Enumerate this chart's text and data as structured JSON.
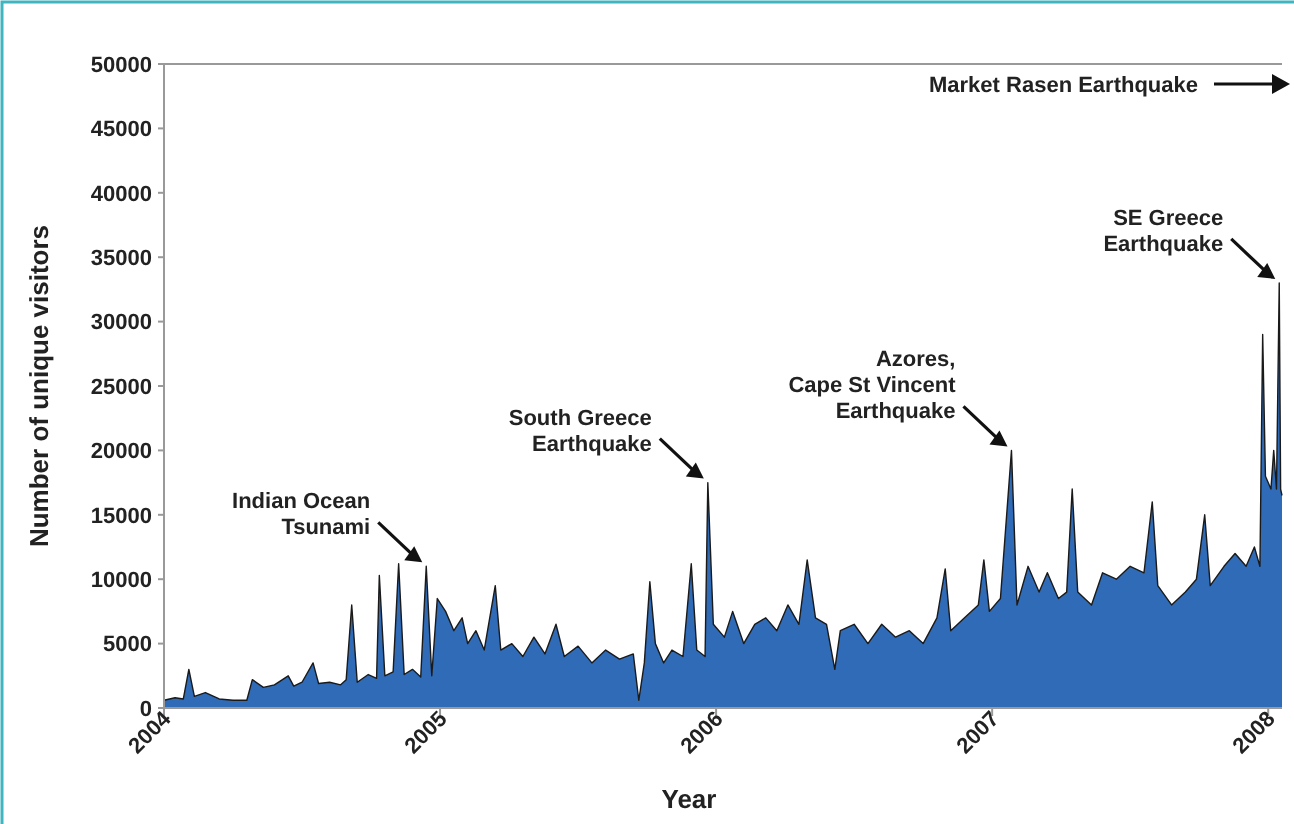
{
  "chart_data": {
    "type": "area",
    "xlabel": "Year",
    "ylabel": "Number of unique visitors",
    "xlim": [
      2004,
      2008.05
    ],
    "xticks": [
      2004,
      2005,
      2006,
      2007,
      2008
    ],
    "ylim": [
      0,
      50000
    ],
    "yticks": [
      0,
      5000,
      10000,
      15000,
      20000,
      25000,
      30000,
      35000,
      40000,
      45000,
      50000
    ],
    "annotations": [
      {
        "text": "Indian Ocean\nTsunami",
        "x": 2004.95,
        "y": 11000
      },
      {
        "text": "South Greece\nEarthquake",
        "x": 2005.97,
        "y": 17500
      },
      {
        "text": "Azores,\nCape St Vincent\nEarthquake",
        "x": 2007.07,
        "y": 20000
      },
      {
        "text": "SE Greece\nEarthquake",
        "x": 2008.04,
        "y": 33000
      },
      "Market Rasen Earthquake"
    ],
    "series": [
      {
        "color": "#2f6bb7",
        "x": [
          2004.0,
          2004.04,
          2004.07,
          2004.09,
          2004.11,
          2004.15,
          2004.2,
          2004.25,
          2004.3,
          2004.32,
          2004.36,
          2004.4,
          2004.45,
          2004.47,
          2004.5,
          2004.54,
          2004.56,
          2004.6,
          2004.64,
          2004.66,
          2004.68,
          2004.7,
          2004.74,
          2004.77,
          2004.78,
          2004.8,
          2004.83,
          2004.85,
          2004.87,
          2004.9,
          2004.93,
          2004.95,
          2004.97,
          2004.99,
          2005.02,
          2005.05,
          2005.08,
          2005.1,
          2005.13,
          2005.16,
          2005.2,
          2005.22,
          2005.26,
          2005.3,
          2005.34,
          2005.38,
          2005.42,
          2005.45,
          2005.5,
          2005.55,
          2005.6,
          2005.65,
          2005.7,
          2005.72,
          2005.74,
          2005.76,
          2005.78,
          2005.81,
          2005.84,
          2005.88,
          2005.91,
          2005.93,
          2005.96,
          2005.97,
          2005.99,
          2006.03,
          2006.06,
          2006.1,
          2006.14,
          2006.18,
          2006.22,
          2006.26,
          2006.3,
          2006.33,
          2006.36,
          2006.4,
          2006.43,
          2006.45,
          2006.5,
          2006.55,
          2006.6,
          2006.65,
          2006.7,
          2006.75,
          2006.8,
          2006.83,
          2006.85,
          2006.9,
          2006.95,
          2006.97,
          2006.99,
          2007.03,
          2007.07,
          2007.09,
          2007.13,
          2007.17,
          2007.2,
          2007.24,
          2007.27,
          2007.29,
          2007.31,
          2007.36,
          2007.4,
          2007.45,
          2007.5,
          2007.55,
          2007.58,
          2007.6,
          2007.65,
          2007.7,
          2007.74,
          2007.77,
          2007.79,
          2007.84,
          2007.88,
          2007.92,
          2007.95,
          2007.97,
          2007.98,
          2007.99,
          2008.01,
          2008.02,
          2008.03,
          2008.04,
          2008.045,
          2008.05
        ],
        "values": [
          600,
          800,
          700,
          3000,
          900,
          1200,
          700,
          600,
          600,
          2200,
          1600,
          1800,
          2500,
          1700,
          2000,
          3500,
          1900,
          2000,
          1800,
          2200,
          8000,
          2000,
          2600,
          2300,
          10300,
          2500,
          2800,
          11200,
          2600,
          3000,
          2400,
          11000,
          2500,
          8500,
          7500,
          6000,
          7000,
          5000,
          6000,
          4500,
          9500,
          4500,
          5000,
          4000,
          5500,
          4200,
          6500,
          4000,
          4800,
          3500,
          4500,
          3800,
          4200,
          600,
          3500,
          9800,
          5000,
          3500,
          4500,
          4000,
          11200,
          4500,
          4000,
          17500,
          6500,
          5500,
          7500,
          5000,
          6500,
          7000,
          6000,
          8000,
          6500,
          11500,
          7000,
          6500,
          3000,
          6000,
          6500,
          5000,
          6500,
          5500,
          6000,
          5000,
          7000,
          10800,
          6000,
          7000,
          8000,
          11500,
          7500,
          8500,
          20000,
          8000,
          11000,
          9000,
          10500,
          8500,
          9000,
          17000,
          9000,
          8000,
          10500,
          10000,
          11000,
          10500,
          16000,
          9500,
          8000,
          9000,
          10000,
          15000,
          9500,
          11000,
          12000,
          11000,
          12500,
          11000,
          29000,
          18000,
          17000,
          20000,
          17000,
          33000,
          17000,
          16500
        ]
      }
    ]
  }
}
